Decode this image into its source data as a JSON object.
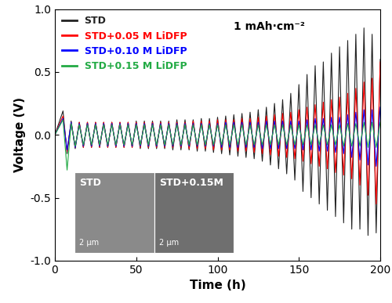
{
  "chart_data": {
    "type": "line",
    "x_label": "Time (h)",
    "y_label": "Voltage (V)",
    "annotation": "1 mAh·cm⁻²",
    "insets": [
      {
        "label": "STD",
        "scale_bar": "2 μm"
      },
      {
        "label": "STD+0.15M",
        "scale_bar": "2 μm"
      }
    ],
    "xlim": [
      0,
      200
    ],
    "xticks": [
      0,
      50,
      100,
      150,
      200
    ],
    "ylim": [
      -1.0,
      1.0
    ],
    "yticks": [
      {
        "value": -1.0,
        "label": "-1.0"
      },
      {
        "value": -0.5,
        "label": "-0.5"
      },
      {
        "value": 0.0,
        "label": "0.0"
      },
      {
        "value": 0.5,
        "label": "0.5"
      },
      {
        "value": 1.0,
        "label": "1.0"
      }
    ],
    "legend": "upper left",
    "x": [
      0,
      5,
      7.5,
      10,
      12.5,
      15,
      17.5,
      20,
      22.5,
      25,
      27.5,
      30,
      32.5,
      35,
      37.5,
      40,
      42.5,
      45,
      47.5,
      50,
      52.5,
      55,
      57.5,
      60,
      62.5,
      65,
      67.5,
      70,
      72.5,
      75,
      77.5,
      80,
      82.5,
      85,
      87.5,
      90,
      92.5,
      95,
      97.5,
      100,
      102.5,
      105,
      107.5,
      110,
      112.5,
      115,
      117.5,
      120,
      122.5,
      125,
      127.5,
      130,
      132.5,
      135,
      137.5,
      140,
      142.5,
      145,
      147.5,
      150,
      152.5,
      155,
      157.5,
      160,
      162.5,
      165,
      167.5,
      170,
      172.5,
      175,
      177.5,
      180,
      182.5,
      185,
      187.5,
      190,
      192.5,
      195,
      197.5,
      200
    ],
    "series": [
      {
        "name": "STD",
        "color": "#222222",
        "values": [
          0,
          0.19,
          -0.15,
          0.11,
          -0.11,
          0.1,
          -0.1,
          0.1,
          -0.1,
          0.1,
          -0.1,
          0.1,
          -0.1,
          0.1,
          -0.1,
          0.1,
          -0.1,
          0.1,
          -0.1,
          0.11,
          -0.11,
          0.11,
          -0.11,
          0.11,
          -0.11,
          0.11,
          -0.11,
          0.11,
          -0.12,
          0.12,
          -0.12,
          0.12,
          -0.12,
          0.12,
          -0.13,
          0.13,
          -0.13,
          0.13,
          -0.14,
          0.14,
          -0.15,
          0.15,
          -0.16,
          0.16,
          -0.17,
          0.17,
          -0.18,
          0.18,
          -0.19,
          0.2,
          -0.21,
          0.22,
          -0.24,
          0.25,
          -0.27,
          0.28,
          -0.31,
          0.33,
          -0.36,
          0.4,
          -0.45,
          0.48,
          -0.5,
          0.55,
          -0.55,
          0.58,
          -0.6,
          0.65,
          -0.65,
          0.7,
          -0.7,
          0.75,
          -0.75,
          0.8,
          -0.75,
          0.85,
          -0.8,
          0.8,
          -0.78,
          0.6
        ]
      },
      {
        "name": "STD+0.05 M LiDFP",
        "color": "#ff0000",
        "values": [
          0,
          0.15,
          -0.13,
          0.1,
          -0.1,
          0.1,
          -0.1,
          0.1,
          -0.1,
          0.1,
          -0.1,
          0.1,
          -0.1,
          0.1,
          -0.1,
          0.1,
          -0.1,
          0.1,
          -0.1,
          0.1,
          -0.1,
          0.1,
          -0.1,
          0.1,
          -0.1,
          0.1,
          -0.1,
          0.1,
          -0.1,
          0.1,
          -0.1,
          0.1,
          -0.11,
          0.11,
          -0.11,
          0.11,
          -0.11,
          0.11,
          -0.12,
          0.12,
          -0.12,
          0.12,
          -0.12,
          0.12,
          -0.13,
          0.13,
          -0.13,
          0.13,
          -0.14,
          0.14,
          -0.15,
          0.15,
          -0.16,
          0.16,
          -0.17,
          0.17,
          -0.18,
          0.18,
          -0.19,
          0.2,
          -0.21,
          0.22,
          -0.23,
          0.24,
          -0.25,
          0.26,
          -0.27,
          0.28,
          -0.3,
          0.3,
          -0.32,
          0.33,
          -0.35,
          0.37,
          -0.4,
          0.42,
          -0.48,
          0.45,
          -0.55,
          0.58
        ]
      },
      {
        "name": "STD+0.10 M LiDFP",
        "color": "#0000ff",
        "values": [
          0,
          0.13,
          -0.12,
          0.1,
          -0.1,
          0.09,
          -0.09,
          0.09,
          -0.09,
          0.09,
          -0.09,
          0.09,
          -0.09,
          0.09,
          -0.09,
          0.09,
          -0.09,
          0.09,
          -0.09,
          0.09,
          -0.09,
          0.09,
          -0.09,
          0.09,
          -0.09,
          0.09,
          -0.09,
          0.09,
          -0.09,
          0.09,
          -0.09,
          0.09,
          -0.09,
          0.09,
          -0.09,
          0.09,
          -0.09,
          0.09,
          -0.09,
          0.09,
          -0.1,
          0.1,
          -0.1,
          0.1,
          -0.1,
          0.1,
          -0.1,
          0.1,
          -0.1,
          0.1,
          -0.11,
          0.11,
          -0.11,
          0.11,
          -0.11,
          0.11,
          -0.11,
          0.11,
          -0.11,
          0.11,
          -0.12,
          0.12,
          -0.12,
          0.13,
          -0.13,
          0.13,
          -0.13,
          0.14,
          -0.14,
          0.14,
          -0.15,
          0.16,
          -0.18,
          0.18,
          -0.2,
          0.2,
          -0.24,
          0.2,
          -0.25,
          0.22
        ]
      },
      {
        "name": "STD+0.15 M LiDFP",
        "color": "#22aa44",
        "values": [
          0,
          0.12,
          -0.28,
          0.09,
          -0.09,
          0.08,
          -0.08,
          0.08,
          -0.08,
          0.08,
          -0.08,
          0.08,
          -0.08,
          0.08,
          -0.08,
          0.08,
          -0.08,
          0.08,
          -0.08,
          0.08,
          -0.08,
          0.08,
          -0.08,
          0.08,
          -0.08,
          0.08,
          -0.08,
          0.08,
          -0.08,
          0.08,
          -0.08,
          0.08,
          -0.08,
          0.08,
          -0.08,
          0.08,
          -0.08,
          0.08,
          -0.08,
          0.08,
          -0.08,
          0.08,
          -0.08,
          0.08,
          -0.08,
          0.08,
          -0.08,
          0.08,
          -0.08,
          0.08,
          -0.08,
          0.08,
          -0.08,
          0.08,
          -0.08,
          0.08,
          -0.08,
          0.08,
          -0.08,
          0.08,
          -0.08,
          0.08,
          -0.08,
          0.08,
          -0.08,
          0.08,
          -0.08,
          0.08,
          -0.08,
          0.08,
          -0.09,
          0.09,
          -0.09,
          0.09,
          -0.09,
          0.1,
          -0.1,
          0.1,
          -0.1,
          0.1
        ]
      }
    ]
  }
}
